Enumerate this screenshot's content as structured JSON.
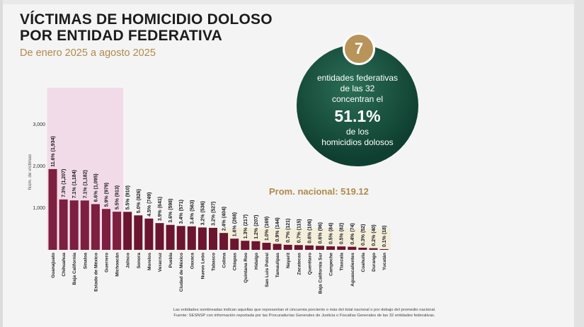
{
  "header": {
    "title_line1": "VÍCTIMAS DE HOMICIDIO DOLOSO",
    "title_line2": "POR ENTIDAD FEDERATIVA",
    "subtitle": "De enero 2025 a agosto 2025"
  },
  "callout": {
    "number": "7",
    "line1": "entidades federativas",
    "line2": "de las 32",
    "line3": "concentran el",
    "percent": "51.1%",
    "line4": "de los",
    "line5": "homicidios dolosos"
  },
  "colors": {
    "highlight_bar": "#7d1f3f",
    "normal_bar": "#6b1530",
    "highlight_band": "#f2dbe8",
    "below_avg_band": "#f3efdc",
    "title": "#1c1c1c",
    "subtitle": "#b08a4a",
    "circle": "#0f3f30",
    "badge": "#b8935a",
    "avg_label": "#b08a4a"
  },
  "footer": {
    "line1": "Las entidades sombreadas indican aquellas que representan el cincuenta porciento o más del total nacional o por debajo del promedio nacional.",
    "line2": "Fuente: SESNSP con información reportada por las Procuradurías Generales de Justicia o Fiscalías Generales de las 32 entidades federativas."
  },
  "chart_data": {
    "type": "bar",
    "ylabel": "Núm. de víctimas",
    "ylim": [
      0,
      3000
    ],
    "yticks": [
      "1,000",
      "2,000",
      "3,000"
    ],
    "yticks_values": [
      1000,
      2000,
      3000
    ],
    "average_label": "Prom. nacional: 519.12",
    "average_value": 519.12,
    "highlighted_count": 7,
    "categories": [
      "Guanajuato",
      "Chihuahua",
      "Baja California",
      "Sinaloa",
      "Estado de México",
      "Guerrero",
      "Michoacán",
      "Jalisco",
      "Sonora",
      "Morelos",
      "Veracruz",
      "Puebla",
      "Ciudad de México",
      "Oaxaca",
      "Nuevo León",
      "Tabasco",
      "Colima",
      "Chiapas",
      "Quintana Roo",
      "Hidalgo",
      "San Luis Potosí",
      "Tamaulipas",
      "Nayarit",
      "Zacatecas",
      "Querétaro",
      "Baja California Sur",
      "Campeche",
      "Tlaxcala",
      "Aguascalientes",
      "Coahuila",
      "Durango",
      "Yucatán"
    ],
    "values": [
      1934,
      1207,
      1184,
      1182,
      1095,
      979,
      913,
      910,
      826,
      749,
      641,
      598,
      571,
      563,
      536,
      527,
      404,
      268,
      217,
      207,
      169,
      144,
      121,
      115,
      106,
      96,
      84,
      82,
      74,
      52,
      40,
      18
    ],
    "labels": [
      "11.6% (1,934)",
      "7.3% (1,207)",
      "7.1% (1,184)",
      "7.1% (1,182)",
      "6.6% (1,095)",
      "5.9% (979)",
      "5.5% (913)",
      "5.5% (910)",
      "5.0% (826)",
      "4.5% (749)",
      "3.9% (641)",
      "3.6% (598)",
      "3.4% (571)",
      "3.4% (563)",
      "3.2% (536)",
      "3.2% (527)",
      "2.4% (404)",
      "1.6% (268)",
      "1.3% (217)",
      "1.2% (207)",
      "1.0% (169)",
      "0.9% (144)",
      "0.7% (121)",
      "0.7% (115)",
      "0.6% (106)",
      "0.6% (96)",
      "0.5% (84)",
      "0.5% (82)",
      "0.4% (74)",
      "0.3% (52)",
      "0.2% (40)",
      "0.1% (18)"
    ]
  }
}
